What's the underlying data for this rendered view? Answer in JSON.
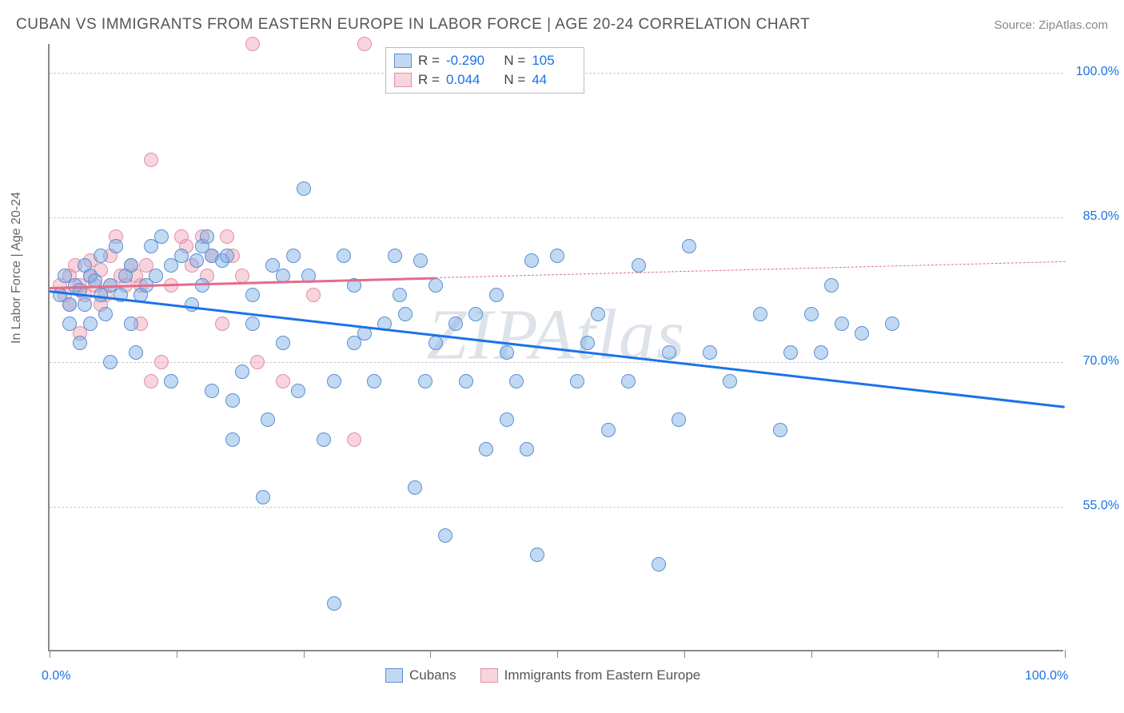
{
  "header": {
    "title": "CUBAN VS IMMIGRANTS FROM EASTERN EUROPE IN LABOR FORCE | AGE 20-24 CORRELATION CHART",
    "source": "Source: ZipAtlas.com"
  },
  "axes": {
    "y_label": "In Labor Force | Age 20-24",
    "x_min": 0,
    "x_max": 100,
    "y_min": 40,
    "y_max": 103,
    "y_ticks": [
      {
        "v": 100,
        "label": "100.0%"
      },
      {
        "v": 85,
        "label": "85.0%"
      },
      {
        "v": 70,
        "label": "70.0%"
      },
      {
        "v": 55,
        "label": "55.0%"
      }
    ],
    "x_ticks": [
      0,
      12.5,
      25,
      37.5,
      50,
      62.5,
      75,
      87.5,
      100
    ],
    "x_tick_labels": {
      "0": "0.0%",
      "100": "100.0%"
    },
    "tick_label_color": "#1a73e8",
    "grid_color": "#cccccc"
  },
  "series": {
    "cubans": {
      "label": "Cubans",
      "fill": "rgba(120, 170, 230, 0.45)",
      "stroke": "#5b8fd0",
      "trend_color": "#1a73e8",
      "marker_radius": 9,
      "R": "-0.290",
      "N": "105",
      "trend": {
        "x1": 0,
        "y1": 77.5,
        "x2": 100,
        "y2": 65.5,
        "solid_until_x": 100
      },
      "points": [
        [
          1,
          77
        ],
        [
          1.5,
          79
        ],
        [
          2,
          76
        ],
        [
          2,
          74
        ],
        [
          2.5,
          78
        ],
        [
          3,
          77.5
        ],
        [
          3,
          72
        ],
        [
          3.5,
          80
        ],
        [
          3.5,
          76
        ],
        [
          4,
          79
        ],
        [
          4,
          74
        ],
        [
          4.5,
          78.5
        ],
        [
          5,
          77
        ],
        [
          5,
          81
        ],
        [
          5.5,
          75
        ],
        [
          6,
          78
        ],
        [
          6,
          70
        ],
        [
          6.5,
          82
        ],
        [
          7,
          77
        ],
        [
          7.5,
          79
        ],
        [
          8,
          74
        ],
        [
          8,
          80
        ],
        [
          8.5,
          71
        ],
        [
          9,
          77
        ],
        [
          9.5,
          78
        ],
        [
          10,
          82
        ],
        [
          10.5,
          79
        ],
        [
          11,
          83
        ],
        [
          12,
          80
        ],
        [
          12,
          68
        ],
        [
          13,
          81
        ],
        [
          14,
          76
        ],
        [
          14.5,
          80.5
        ],
        [
          15,
          82
        ],
        [
          15,
          78
        ],
        [
          15.5,
          83
        ],
        [
          16,
          81
        ],
        [
          16,
          67
        ],
        [
          17,
          80.5
        ],
        [
          17.5,
          81
        ],
        [
          18,
          66
        ],
        [
          18,
          62
        ],
        [
          19,
          69
        ],
        [
          20,
          77
        ],
        [
          20,
          74
        ],
        [
          21,
          56
        ],
        [
          21.5,
          64
        ],
        [
          22,
          80
        ],
        [
          23,
          79
        ],
        [
          23,
          72
        ],
        [
          24,
          81
        ],
        [
          24.5,
          67
        ],
        [
          25,
          88
        ],
        [
          25.5,
          79
        ],
        [
          27,
          62
        ],
        [
          28,
          45
        ],
        [
          28,
          68
        ],
        [
          29,
          81
        ],
        [
          30,
          72
        ],
        [
          30,
          78
        ],
        [
          31,
          73
        ],
        [
          32,
          68
        ],
        [
          33,
          74
        ],
        [
          34,
          81
        ],
        [
          34.5,
          77
        ],
        [
          35,
          75
        ],
        [
          36,
          57
        ],
        [
          36.5,
          80.5
        ],
        [
          37,
          68
        ],
        [
          38,
          78
        ],
        [
          38,
          72
        ],
        [
          39,
          52
        ],
        [
          40,
          74
        ],
        [
          41,
          68
        ],
        [
          42,
          75
        ],
        [
          43,
          61
        ],
        [
          44,
          77
        ],
        [
          45,
          71
        ],
        [
          45,
          64
        ],
        [
          46,
          68
        ],
        [
          47,
          61
        ],
        [
          47.5,
          80.5
        ],
        [
          48,
          50
        ],
        [
          50,
          81
        ],
        [
          52,
          68
        ],
        [
          53,
          72
        ],
        [
          54,
          75
        ],
        [
          55,
          63
        ],
        [
          57,
          68
        ],
        [
          58,
          80
        ],
        [
          60,
          49
        ],
        [
          61,
          71
        ],
        [
          62,
          64
        ],
        [
          63,
          82
        ],
        [
          65,
          71
        ],
        [
          67,
          68
        ],
        [
          70,
          75
        ],
        [
          72,
          63
        ],
        [
          73,
          71
        ],
        [
          75,
          75
        ],
        [
          76,
          71
        ],
        [
          77,
          78
        ],
        [
          78,
          74
        ],
        [
          80,
          73
        ],
        [
          83,
          74
        ]
      ]
    },
    "eastern_europe": {
      "label": "Immigrants from Eastern Europe",
      "fill": "rgba(240, 160, 180, 0.45)",
      "stroke": "#e091a8",
      "trend_color": "#e56b8a",
      "marker_radius": 9,
      "R": "0.044",
      "N": "44",
      "trend": {
        "x1": 0,
        "y1": 77.8,
        "x2": 100,
        "y2": 80.5,
        "solid_until_x": 38
      },
      "points": [
        [
          1,
          78
        ],
        [
          1.5,
          77
        ],
        [
          2,
          79
        ],
        [
          2,
          76
        ],
        [
          2.5,
          80
        ],
        [
          3,
          78
        ],
        [
          3,
          73
        ],
        [
          3.5,
          77
        ],
        [
          4,
          79
        ],
        [
          4,
          80.5
        ],
        [
          4.5,
          78
        ],
        [
          5,
          79.5
        ],
        [
          5,
          76
        ],
        [
          5.5,
          77
        ],
        [
          6,
          81
        ],
        [
          6,
          78
        ],
        [
          6.5,
          83
        ],
        [
          7,
          79
        ],
        [
          7.5,
          78
        ],
        [
          8,
          80
        ],
        [
          8.5,
          79
        ],
        [
          9,
          78
        ],
        [
          9,
          74
        ],
        [
          9.5,
          80
        ],
        [
          10,
          68
        ],
        [
          10,
          91
        ],
        [
          11,
          70
        ],
        [
          12,
          78
        ],
        [
          13,
          83
        ],
        [
          13.5,
          82
        ],
        [
          14,
          80
        ],
        [
          15,
          83
        ],
        [
          15.5,
          79
        ],
        [
          16,
          81
        ],
        [
          17,
          74
        ],
        [
          17.5,
          83
        ],
        [
          18,
          81
        ],
        [
          19,
          79
        ],
        [
          20,
          103
        ],
        [
          20.5,
          70
        ],
        [
          23,
          68
        ],
        [
          26,
          77
        ],
        [
          30,
          62
        ],
        [
          31,
          103
        ]
      ]
    }
  },
  "legend": {
    "bottom_items": [
      "cubans",
      "eastern_europe"
    ]
  },
  "watermark": "ZIPAtlas",
  "styling": {
    "background": "#ffffff",
    "axis_color": "#888888",
    "title_color": "#555555",
    "source_color": "#888888"
  }
}
